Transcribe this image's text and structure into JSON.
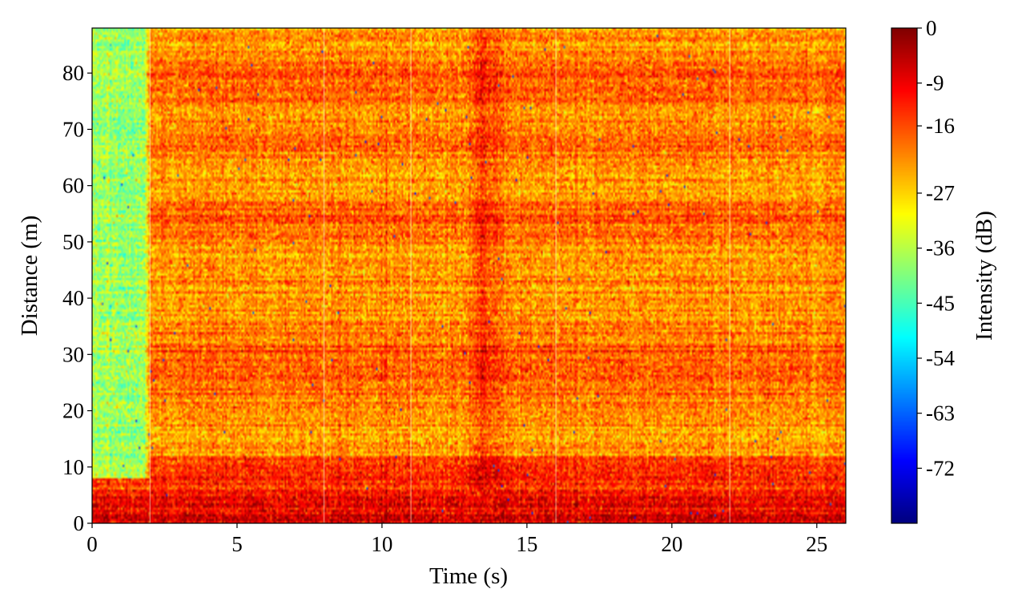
{
  "chart_data": {
    "type": "heatmap",
    "title": "",
    "xlabel": "Time (s)",
    "ylabel": "Distance (m)",
    "xlim": [
      0,
      26
    ],
    "ylim": [
      0,
      88
    ],
    "x_ticks": [
      0,
      5,
      10,
      15,
      20,
      25
    ],
    "x_tick_labels": [
      "0",
      "5",
      "10",
      "15",
      "20",
      "25"
    ],
    "y_ticks": [
      0,
      10,
      20,
      30,
      40,
      50,
      60,
      70,
      80
    ],
    "y_tick_labels": [
      "0",
      "10",
      "20",
      "30",
      "40",
      "50",
      "60",
      "70",
      "80"
    ],
    "colormap": "jet",
    "colorbar": {
      "label": "Intensity (dB)",
      "range": [
        -81,
        0
      ],
      "ticks": [
        0,
        -9,
        -16,
        -27,
        -36,
        -45,
        -54,
        -63,
        -72
      ],
      "tick_labels": [
        "0",
        "-9",
        "-16",
        "-27",
        "-36",
        "-45",
        "-54",
        "-63",
        "-72"
      ],
      "placement": "right"
    },
    "features": {
      "background_level_db": -22,
      "strong_band": {
        "distance_range_m": [
          0,
          6
        ],
        "level_db": -8
      },
      "low_intensity_region": {
        "time_range_s": [
          0,
          2
        ],
        "distance_range_m": [
          8,
          88
        ],
        "level_db": -38
      },
      "elevated_bands_m": [
        [
          22,
          32
        ],
        [
          50,
          57
        ],
        [
          66,
          72
        ],
        [
          75,
          82
        ]
      ],
      "vertical_streak": {
        "time_range_s": [
          12.8,
          14.2
        ],
        "level_db": -14
      },
      "bright_vertical_lines_s": [
        2.0,
        8.0,
        11.0,
        16.0,
        22.0
      ]
    }
  }
}
